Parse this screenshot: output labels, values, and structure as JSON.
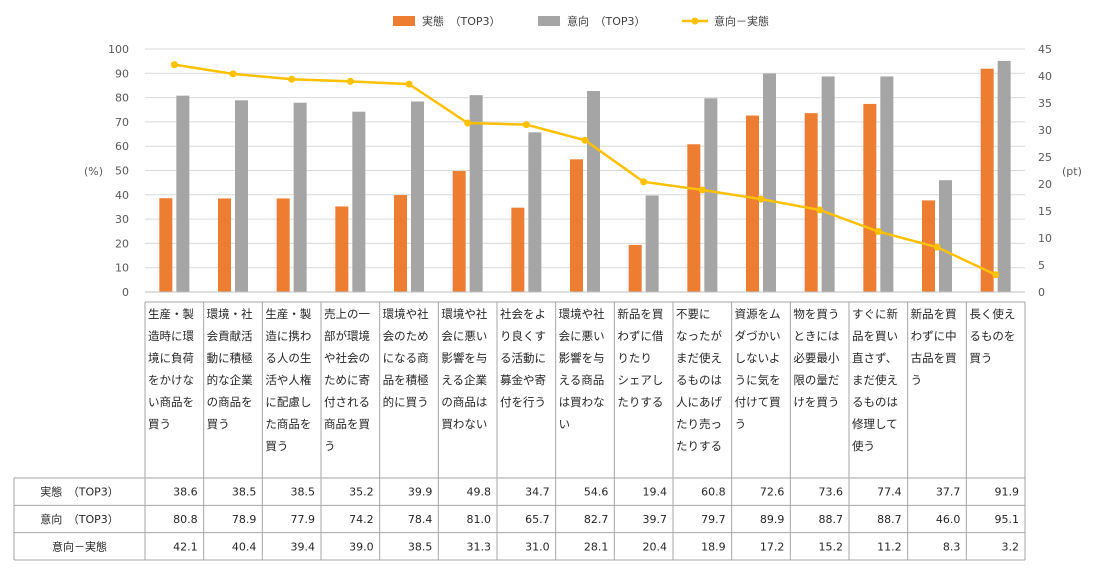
{
  "chart_data": {
    "type": "bar",
    "legend": {
      "position": "top",
      "entries": [
        "実態　（TOP3）",
        "意向　（TOP3）",
        "意向－実態"
      ]
    },
    "y_axis_left": {
      "label": "(%)",
      "min": 0,
      "max": 100,
      "step": 10,
      "ticks": [
        "0",
        "10",
        "20",
        "30",
        "40",
        "50",
        "60",
        "70",
        "80",
        "90",
        "100"
      ]
    },
    "y_axis_right": {
      "label": "(pt)",
      "min": 0,
      "max": 45,
      "step": 5,
      "ticks": [
        "0",
        "5",
        "10",
        "15",
        "20",
        "25",
        "30",
        "35",
        "40",
        "45"
      ]
    },
    "grid": true,
    "categories": [
      [
        "生産・製",
        "造時に環",
        "境に負荷",
        "をかけな",
        "い商品を",
        "買う"
      ],
      [
        "環境・社",
        "会貢献活",
        "動に積極",
        "的な企業",
        "の商品を",
        "買う"
      ],
      [
        "生産・製",
        "造に携わ",
        "る人の生",
        "活や人権",
        "に配慮し",
        "た商品を",
        "買う"
      ],
      [
        "売上の一",
        "部が環境",
        "や社会の",
        "ために寄",
        "付される",
        "商品を買",
        "う"
      ],
      [
        "環境や社",
        "会のため",
        "になる商",
        "品を積極",
        "的に買う"
      ],
      [
        "環境や社",
        "会に悪い",
        "影響を与",
        "える企業",
        "の商品は",
        "買わない"
      ],
      [
        "社会をよ",
        "り良くす",
        "る活動に",
        "募金や寄",
        "付を行う"
      ],
      [
        "環境や社",
        "会に悪い",
        "影響を与",
        "える商品",
        "は買わな",
        "い"
      ],
      [
        "新品を買",
        "わずに借",
        "りたり",
        "シェアし",
        "たりする"
      ],
      [
        "不要に",
        "なったが",
        "まだ使え",
        "るものは",
        "人にあげ",
        "たり売っ",
        "たりする"
      ],
      [
        "資源をム",
        "ダづかい",
        "しないよ",
        "うに気を",
        "付けて買",
        "う"
      ],
      [
        "物を買う",
        "ときには",
        "必要最小",
        "限の量だ",
        "けを買う"
      ],
      [
        "すぐに新",
        "品を買い",
        "直さず、",
        "まだ使え",
        "るものは",
        "修理して",
        "使う"
      ],
      [
        "新品を買",
        "わずに中",
        "古品を買",
        "う"
      ],
      [
        "長く使え",
        "るものを",
        "買う"
      ]
    ],
    "series": [
      {
        "name": "実態　（TOP3）",
        "type": "bar",
        "axis": "left",
        "color": "#ED7D31",
        "values": [
          38.6,
          38.5,
          38.5,
          35.2,
          39.9,
          49.8,
          34.7,
          54.6,
          19.4,
          60.8,
          72.6,
          73.6,
          77.4,
          37.7,
          91.9
        ]
      },
      {
        "name": "意向　（TOP3）",
        "type": "bar",
        "axis": "left",
        "color": "#A5A5A5",
        "values": [
          80.8,
          78.9,
          77.9,
          74.2,
          78.4,
          81.0,
          65.7,
          82.7,
          39.7,
          79.7,
          89.9,
          88.7,
          88.7,
          46.0,
          95.1
        ]
      },
      {
        "name": "意向－実態",
        "type": "line",
        "axis": "right",
        "color": "#FFC000",
        "values": [
          42.1,
          40.4,
          39.4,
          39.0,
          38.5,
          31.3,
          31.0,
          28.1,
          20.4,
          18.9,
          17.2,
          15.2,
          11.2,
          8.3,
          3.2
        ]
      }
    ],
    "table": {
      "row_labels": [
        "実態　（TOP3）",
        "意向　（TOP3）",
        "意向－実態"
      ],
      "rows": [
        [
          "38.6",
          "38.5",
          "38.5",
          "35.2",
          "39.9",
          "49.8",
          "34.7",
          "54.6",
          "19.4",
          "60.8",
          "72.6",
          "73.6",
          "77.4",
          "37.7",
          "91.9"
        ],
        [
          "80.8",
          "78.9",
          "77.9",
          "74.2",
          "78.4",
          "81.0",
          "65.7",
          "82.7",
          "39.7",
          "79.7",
          "89.9",
          "88.7",
          "88.7",
          "46.0",
          "95.1"
        ],
        [
          "42.1",
          "40.4",
          "39.4",
          "39.0",
          "38.5",
          "31.3",
          "31.0",
          "28.1",
          "20.4",
          "18.9",
          "17.2",
          "15.2",
          "11.2",
          "8.3",
          "3.2"
        ]
      ]
    }
  }
}
